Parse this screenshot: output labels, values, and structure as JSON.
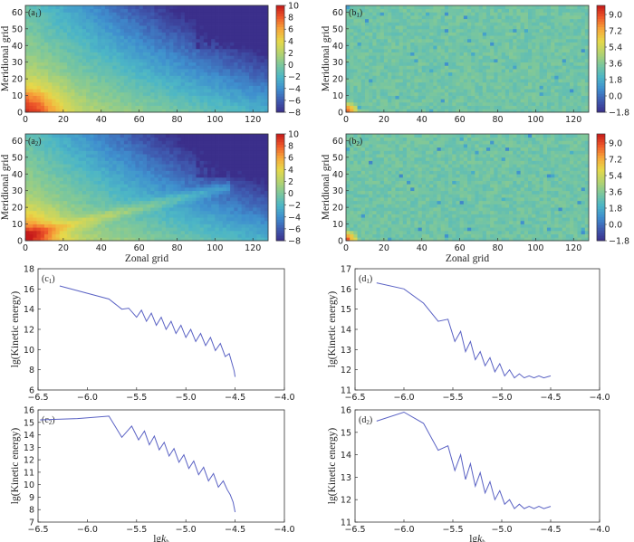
{
  "colors": {
    "colormap": [
      "#3b2f8b",
      "#3f5bb0",
      "#3f8fce",
      "#4cb6c6",
      "#7cc79c",
      "#b5d36e",
      "#e6d84a",
      "#f6a83a",
      "#ef5a2a",
      "#c61a1a"
    ],
    "line": "#5a62c4"
  },
  "chart_data": [
    {
      "type": "heatmap",
      "id": "a1",
      "panel_label": "(a",
      "panel_sub": "1",
      "panel_suffix": ")",
      "xlabel": "",
      "ylabel": "Meridional grid",
      "xlim": [
        0,
        128
      ],
      "ylim": [
        0,
        64
      ],
      "x_ticks": [
        "0",
        "20",
        "40",
        "60",
        "80",
        "100",
        "120"
      ],
      "y_ticks": [
        "0",
        "10",
        "20",
        "30",
        "40",
        "50",
        "60"
      ],
      "colorbar": {
        "min": -8,
        "max": 10,
        "ticks": [
          "10",
          "8",
          "6",
          "4",
          "2",
          "0",
          "−2",
          "−4",
          "−6",
          "−8"
        ]
      },
      "pattern": "large-scale gradient: high values near origin, low values toward upper right"
    },
    {
      "type": "heatmap",
      "id": "b1",
      "panel_label": "(b",
      "panel_sub": "1",
      "panel_suffix": ")",
      "xlabel": "",
      "ylabel": "Meridional grid",
      "xlim": [
        0,
        128
      ],
      "ylim": [
        0,
        64
      ],
      "x_ticks": [
        "0",
        "20",
        "40",
        "60",
        "80",
        "100",
        "120"
      ],
      "y_ticks": [
        "0",
        "10",
        "20",
        "30",
        "40",
        "50",
        "60"
      ],
      "colorbar": {
        "min": -1.8,
        "max": 10,
        "ticks": [
          "9.0",
          "7.2",
          "5.4",
          "3.6",
          "1.8",
          "0.0",
          "−1.8"
        ]
      },
      "pattern": "nearly uniform field with small-scale noise; maximum near origin"
    },
    {
      "type": "heatmap",
      "id": "a2",
      "panel_label": "(a",
      "panel_sub": "2",
      "panel_suffix": ")",
      "xlabel": "Zonal grid",
      "ylabel": "Meridional grid",
      "xlim": [
        0,
        128
      ],
      "ylim": [
        0,
        64
      ],
      "x_ticks": [
        "0",
        "20",
        "40",
        "60",
        "80",
        "100",
        "120"
      ],
      "y_ticks": [
        "0",
        "10",
        "20",
        "30",
        "40",
        "50",
        "60"
      ],
      "colorbar": {
        "min": -8,
        "max": 10,
        "ticks": [
          "10",
          "8",
          "6",
          "4",
          "2",
          "0",
          "−2",
          "−4",
          "−6",
          "−8"
        ]
      },
      "pattern": "large-scale gradient with diagonal band; low values at upper right"
    },
    {
      "type": "heatmap",
      "id": "b2",
      "panel_label": "(b",
      "panel_sub": "2",
      "panel_suffix": ")",
      "xlabel": "Zonal grid",
      "ylabel": "Meridional grid",
      "xlim": [
        0,
        128
      ],
      "ylim": [
        0,
        64
      ],
      "x_ticks": [
        "0",
        "20",
        "40",
        "60",
        "80",
        "100",
        "120"
      ],
      "y_ticks": [
        "0",
        "10",
        "20",
        "30",
        "40",
        "50",
        "60"
      ],
      "colorbar": {
        "min": -1.8,
        "max": 10,
        "ticks": [
          "9.0",
          "7.2",
          "5.4",
          "3.6",
          "1.8",
          "0.0",
          "−1.8"
        ]
      },
      "pattern": "nearly uniform field with small-scale noise; maximum near origin"
    },
    {
      "type": "line",
      "id": "c1",
      "panel_label": "(c",
      "panel_sub": "1",
      "panel_suffix": ")",
      "xlabel_main": "",
      "xlabel_sub": "",
      "ylabel": "lg(Kinetic energy)",
      "xlim": [
        -6.5,
        -4.0
      ],
      "ylim": [
        6,
        18
      ],
      "x_ticks": [
        "−6.5",
        "−6.0",
        "−5.5",
        "−5.0",
        "−4.5",
        "−4.0"
      ],
      "y_ticks": [
        "6",
        "8",
        "10",
        "12",
        "14",
        "16",
        "18"
      ],
      "series": [
        {
          "name": "kinetic energy spectrum",
          "x": [
            -6.28,
            -5.78,
            -5.65,
            -5.58,
            -5.5,
            -5.45,
            -5.4,
            -5.35,
            -5.3,
            -5.25,
            -5.2,
            -5.15,
            -5.1,
            -5.05,
            -5.0,
            -4.95,
            -4.9,
            -4.85,
            -4.8,
            -4.75,
            -4.7,
            -4.65,
            -4.6,
            -4.56,
            -4.53,
            -4.51,
            -4.5
          ],
          "y": [
            16.3,
            15.0,
            14.0,
            14.1,
            13.2,
            13.9,
            12.8,
            13.6,
            12.4,
            13.2,
            12.0,
            12.8,
            11.6,
            12.4,
            11.2,
            12.0,
            10.8,
            11.6,
            10.4,
            11.2,
            9.9,
            10.6,
            9.3,
            9.6,
            8.6,
            7.9,
            7.3
          ]
        }
      ]
    },
    {
      "type": "line",
      "id": "d1",
      "panel_label": "(d",
      "panel_sub": "1",
      "panel_suffix": ")",
      "xlabel_main": "",
      "xlabel_sub": "",
      "ylabel": "lg(Kinetic energy)",
      "xlim": [
        -6.5,
        -4.0
      ],
      "ylim": [
        11,
        17
      ],
      "x_ticks": [
        "−6.5",
        "−6.0",
        "−5.5",
        "−5.0",
        "−4.5",
        "−4.0"
      ],
      "y_ticks": [
        "11",
        "12",
        "13",
        "14",
        "15",
        "16",
        "17"
      ],
      "series": [
        {
          "name": "kinetic energy spectrum",
          "x": [
            -6.28,
            -6.0,
            -5.8,
            -5.65,
            -5.55,
            -5.48,
            -5.42,
            -5.37,
            -5.32,
            -5.27,
            -5.22,
            -5.17,
            -5.12,
            -5.07,
            -5.02,
            -4.97,
            -4.92,
            -4.87,
            -4.82,
            -4.77,
            -4.72,
            -4.67,
            -4.62,
            -4.57,
            -4.5
          ],
          "y": [
            16.3,
            16.0,
            15.3,
            14.4,
            14.5,
            13.4,
            13.9,
            12.9,
            13.4,
            12.5,
            12.9,
            12.2,
            12.6,
            11.9,
            12.3,
            11.7,
            12.0,
            11.6,
            11.8,
            11.6,
            11.7,
            11.6,
            11.7,
            11.6,
            11.7
          ]
        }
      ]
    },
    {
      "type": "line",
      "id": "c2",
      "panel_label": "(c",
      "panel_sub": "2",
      "panel_suffix": ")",
      "xlabel_main": "lg",
      "xlabel_sub": "k",
      "xlabel_sub2": "h",
      "ylabel": "lg(Kinetic energy)",
      "xlim": [
        -6.5,
        -4.0
      ],
      "ylim": [
        7,
        16
      ],
      "x_ticks": [
        "−6.5",
        "−6.0",
        "−5.5",
        "−5.0",
        "−4.5",
        "−4.0"
      ],
      "y_ticks": [
        "7",
        "8",
        "9",
        "10",
        "11",
        "12",
        "13",
        "14",
        "15",
        "16"
      ],
      "series": [
        {
          "name": "kinetic energy spectrum",
          "x": [
            -6.48,
            -6.1,
            -5.78,
            -5.65,
            -5.55,
            -5.48,
            -5.42,
            -5.37,
            -5.32,
            -5.27,
            -5.22,
            -5.17,
            -5.12,
            -5.07,
            -5.02,
            -4.97,
            -4.92,
            -4.87,
            -4.82,
            -4.77,
            -4.72,
            -4.67,
            -4.62,
            -4.58,
            -4.55,
            -4.52,
            -4.5
          ],
          "y": [
            15.2,
            15.3,
            15.5,
            13.8,
            14.7,
            13.6,
            14.3,
            13.2,
            13.9,
            12.8,
            13.4,
            12.3,
            12.9,
            11.8,
            12.4,
            11.3,
            11.9,
            10.8,
            11.4,
            10.3,
            10.9,
            9.8,
            10.3,
            9.6,
            9.2,
            8.6,
            7.8
          ]
        }
      ]
    },
    {
      "type": "line",
      "id": "d2",
      "panel_label": "(d",
      "panel_sub": "2",
      "panel_suffix": ")",
      "xlabel_main": "lg",
      "xlabel_sub": "k",
      "xlabel_sub2": "h",
      "ylabel": "lg(Kinetic energy)",
      "xlim": [
        -6.5,
        -4.0
      ],
      "ylim": [
        11,
        16
      ],
      "x_ticks": [
        "−6.5",
        "−6.0",
        "−5.5",
        "−5.0",
        "−4.5",
        "−4.0"
      ],
      "y_ticks": [
        "11",
        "12",
        "13",
        "14",
        "15",
        "16"
      ],
      "series": [
        {
          "name": "kinetic energy spectrum",
          "x": [
            -6.28,
            -6.0,
            -5.8,
            -5.65,
            -5.55,
            -5.48,
            -5.42,
            -5.37,
            -5.32,
            -5.27,
            -5.22,
            -5.17,
            -5.12,
            -5.07,
            -5.02,
            -4.97,
            -4.92,
            -4.87,
            -4.82,
            -4.77,
            -4.72,
            -4.67,
            -4.62,
            -4.57,
            -4.5
          ],
          "y": [
            15.5,
            15.9,
            15.4,
            14.2,
            14.4,
            13.3,
            14.0,
            12.9,
            13.6,
            12.6,
            13.2,
            12.3,
            12.8,
            12.0,
            12.4,
            11.8,
            12.0,
            11.6,
            11.8,
            11.6,
            11.7,
            11.6,
            11.7,
            11.6,
            11.7
          ]
        }
      ]
    }
  ]
}
